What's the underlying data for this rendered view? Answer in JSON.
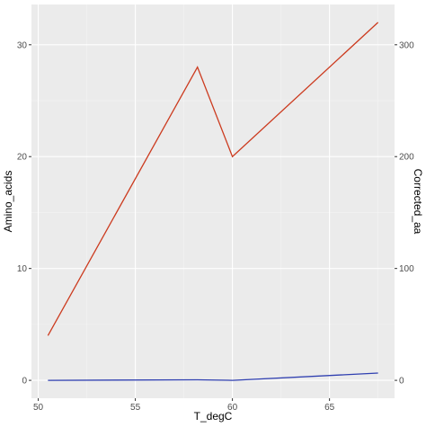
{
  "chart_data": {
    "type": "line",
    "title": "",
    "xlabel": "T_degC",
    "ylabel": "Amino_acids",
    "y2label": "Corrected_aa",
    "xlim": [
      49.65,
      68.35
    ],
    "ylim": [
      -1.6,
      33.6
    ],
    "y2lim": [
      -16,
      336
    ],
    "xticks": [
      50,
      55,
      60,
      65
    ],
    "yticks": [
      0,
      10,
      20,
      30
    ],
    "y2ticks": [
      0,
      100,
      200,
      300
    ],
    "grid": true,
    "panel_background": "#ebebeb",
    "series": [
      {
        "color": "#cc3b1f",
        "x": [
          50.5,
          58.2,
          60.0,
          67.5
        ],
        "values": [
          4.0,
          28.0,
          20.0,
          32.0
        ]
      },
      {
        "color": "#2f3fb0",
        "x": [
          50.5,
          58.2,
          60.0,
          67.5
        ],
        "values": [
          0.0,
          0.05,
          0.0,
          0.65
        ]
      }
    ]
  }
}
